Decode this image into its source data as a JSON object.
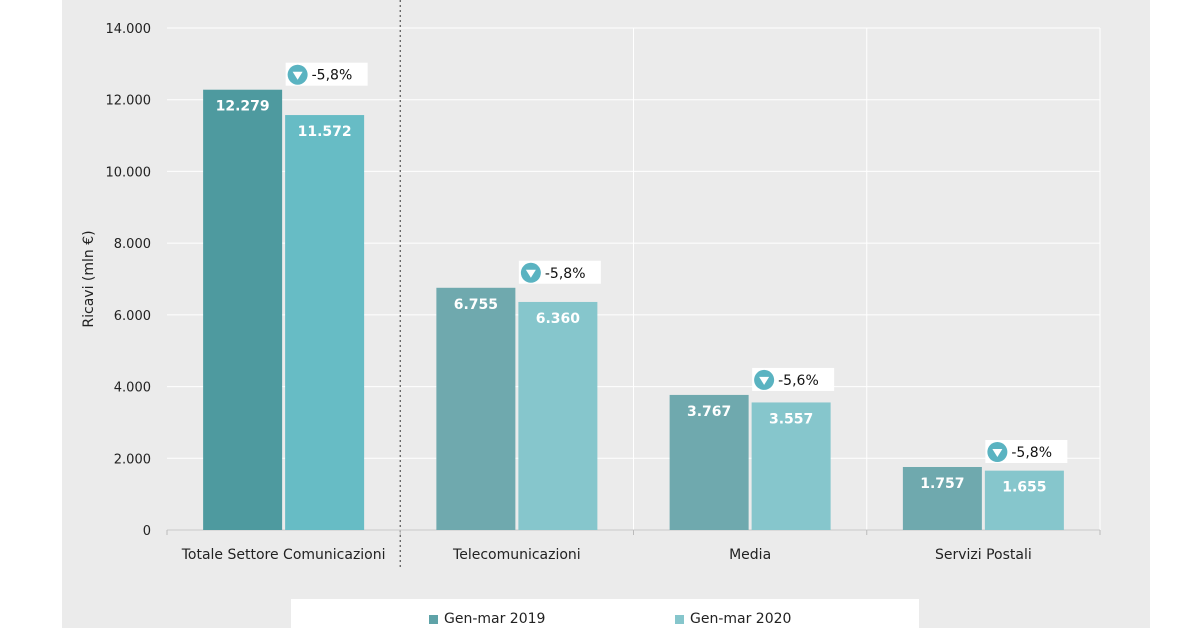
{
  "colors": {
    "background": "#ebebeb",
    "series_2019": [
      "#4e9a9f",
      "#6fa9ae",
      "#6fa9ae",
      "#6fa9ae"
    ],
    "series_2020": [
      "#67bcc5",
      "#86c6cc",
      "#86c6cc",
      "#86c6cc"
    ],
    "change_badge": "#5ab3c1",
    "legend_2019": "#5fa3a8",
    "legend_2020": "#86c6cc"
  },
  "chart_data": {
    "type": "bar",
    "ylabel": "Ricavi (mln €)",
    "xlabel": "",
    "ylim": [
      0,
      14000
    ],
    "yticks": [
      {
        "value": 0,
        "label": "0"
      },
      {
        "value": 2000,
        "label": "2.000"
      },
      {
        "value": 4000,
        "label": "4.000"
      },
      {
        "value": 6000,
        "label": "6.000"
      },
      {
        "value": 8000,
        "label": "8.000"
      },
      {
        "value": 10000,
        "label": "10.000"
      },
      {
        "value": 12000,
        "label": "12.000"
      },
      {
        "value": 14000,
        "label": "14.000"
      }
    ],
    "categories": [
      "Totale Settore Comunicazioni",
      "Telecomunicazioni",
      "Media",
      "Servizi Postali"
    ],
    "series": [
      {
        "name": "Gen-mar 2019",
        "values": [
          12279,
          6755,
          3767,
          1757
        ],
        "labels": [
          "12.279",
          "6.755",
          "3.767",
          "1.757"
        ]
      },
      {
        "name": "Gen-mar 2020",
        "values": [
          11572,
          6360,
          3557,
          1655
        ],
        "labels": [
          "11.572",
          "6.360",
          "3.557",
          "1.655"
        ]
      }
    ],
    "changes": [
      "-5,8%",
      "-5,8%",
      "-5,6%",
      "-5,8%"
    ],
    "grid": true,
    "legend": "bottom"
  }
}
